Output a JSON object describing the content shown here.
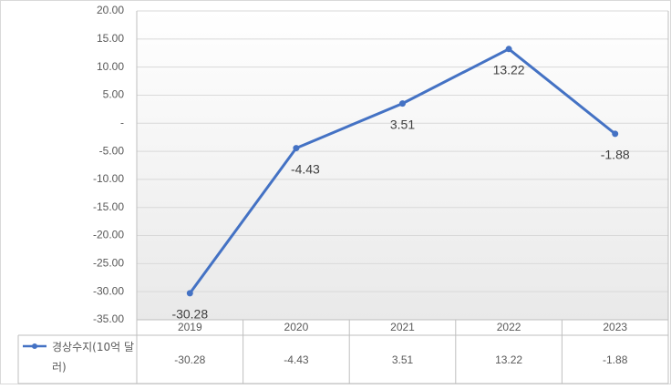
{
  "chart_data": {
    "type": "line",
    "categories": [
      "2019",
      "2020",
      "2021",
      "2022",
      "2023"
    ],
    "series": [
      {
        "name": "경상수지(10억 달러)",
        "color": "#4472c4",
        "values": [
          -30.28,
          -4.43,
          3.51,
          13.22,
          -1.88
        ]
      }
    ],
    "ylim": [
      -35,
      20
    ],
    "yticks": [
      {
        "value": -35,
        "label": "-35.00"
      },
      {
        "value": -30,
        "label": "-30.00"
      },
      {
        "value": -25,
        "label": "-25.00"
      },
      {
        "value": -20,
        "label": "-20.00"
      },
      {
        "value": -15,
        "label": "-15.00"
      },
      {
        "value": -10,
        "label": "-10.00"
      },
      {
        "value": -5,
        "label": "-5.00"
      },
      {
        "value": 0,
        "label": "-"
      },
      {
        "value": 5,
        "label": "5.00"
      },
      {
        "value": 10,
        "label": "10.00"
      },
      {
        "value": 15,
        "label": "15.00"
      },
      {
        "value": 20,
        "label": "20.00"
      }
    ],
    "grid": true,
    "data_table": true,
    "data_labels": true
  }
}
